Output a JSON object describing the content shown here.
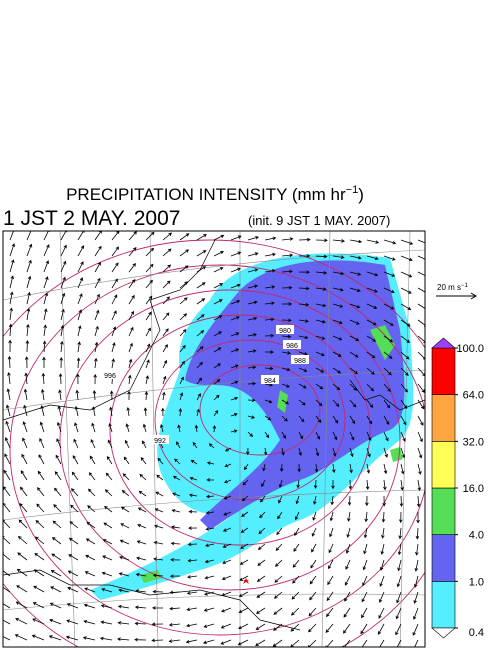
{
  "header": {
    "title": {
      "text": "PRECIPITATION INTENSITY (mm hr",
      "sup": "−1",
      "close": ")"
    },
    "valid_time": "1 JST 2 MAY. 2007",
    "init_time": "(init. 9 JST 1 MAY. 2007)"
  },
  "vector_key": {
    "text": "20 m s",
    "sup": "−1"
  },
  "colorbar": {
    "ticks": [
      0.4,
      {
        "value": 1,
        "label": "1.0"
      },
      {
        "value": 4,
        "label": "4.0"
      },
      {
        "value": 16,
        "label": "16.0"
      },
      {
        "value": 32,
        "label": "32.0"
      },
      {
        "value": 64,
        "label": "64.0"
      },
      {
        "value": 100,
        "label": "100.0"
      }
    ],
    "colors": [
      "#55eeff",
      "#6464f0",
      "#55dd55",
      "#ffff55",
      "#ffa540",
      "#ff0000"
    ],
    "under_color": "#ffffff",
    "over_color": "#a040ff"
  },
  "contour_labels": [
    "980",
    "984",
    "986",
    "988",
    "992",
    "996"
  ]
}
